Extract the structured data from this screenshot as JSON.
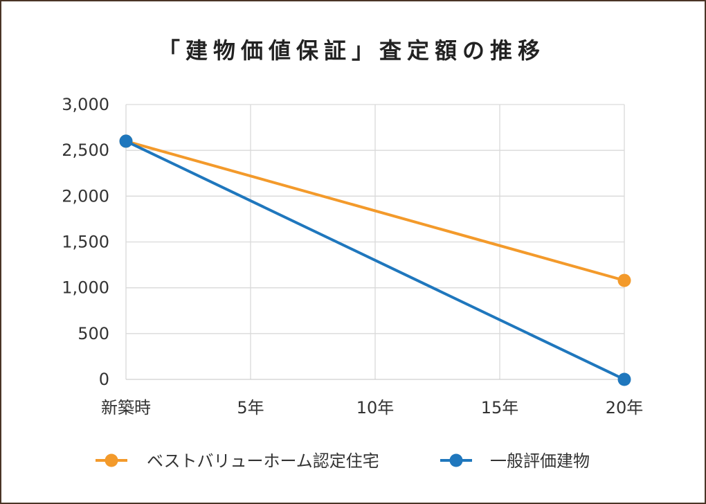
{
  "chart_data": {
    "type": "line",
    "title": "「建物価値保証」査定額の推移",
    "categories": [
      "新築時",
      "5年",
      "10年",
      "15年",
      "20年"
    ],
    "series": [
      {
        "name": "ベストバリューホーム認定住宅",
        "color": "#f39a2b",
        "points": [
          {
            "x": "新築時",
            "y": 2600
          },
          {
            "x": "20年",
            "y": 1080
          }
        ]
      },
      {
        "name": "一般評価建物",
        "color": "#1f77bd",
        "points": [
          {
            "x": "新築時",
            "y": 2600
          },
          {
            "x": "20年",
            "y": 0
          }
        ]
      }
    ],
    "ylim": [
      0,
      3000
    ],
    "yticks": [
      0,
      500,
      1000,
      1500,
      2000,
      2500,
      3000
    ],
    "ytick_labels": [
      "0",
      "500",
      "1,000",
      "1,500",
      "2,000",
      "2,500",
      "3,000"
    ],
    "grid": true,
    "legend": "bottom"
  }
}
